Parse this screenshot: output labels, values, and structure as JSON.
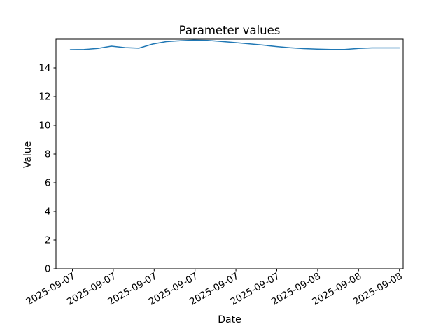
{
  "chart_data": {
    "type": "line",
    "title": "Parameter values",
    "xlabel": "Date",
    "ylabel": "Value",
    "line_color": "#1f77b4",
    "background_color": "#ffffff",
    "grid": false,
    "legend": "none",
    "ylim": [
      0,
      16
    ],
    "yticks": [
      0,
      2,
      4,
      6,
      8,
      10,
      12,
      14
    ],
    "xtick_labels": [
      "2025-09-07",
      "2025-09-07",
      "2025-09-07",
      "2025-09-07",
      "2025-09-07",
      "2025-09-07",
      "2025-09-08",
      "2025-09-08",
      "2025-09-08"
    ],
    "xtick_rotation_deg": 30,
    "series": [
      {
        "values": [
          15.27,
          15.28,
          15.35,
          15.51,
          15.41,
          15.37,
          15.66,
          15.83,
          15.89,
          15.93,
          15.91,
          15.84,
          15.76,
          15.68,
          15.59,
          15.49,
          15.4,
          15.34,
          15.3,
          15.28,
          15.28,
          15.35,
          15.39,
          15.39,
          15.39
        ]
      }
    ]
  }
}
